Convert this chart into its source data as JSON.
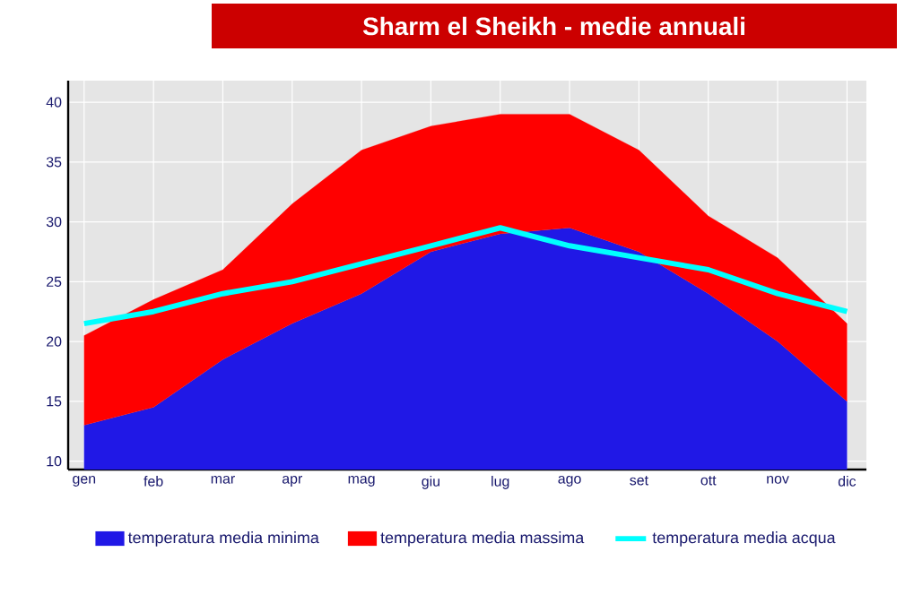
{
  "chart_data": {
    "type": "area",
    "title": "Sharm el Sheikh - medie annuali",
    "categories": [
      "gen",
      "feb",
      "mar",
      "apr",
      "mag",
      "giu",
      "lug",
      "ago",
      "set",
      "ott",
      "nov",
      "dic"
    ],
    "series": [
      {
        "name": "temperatura media minima",
        "color": "#2018e6",
        "values": [
          13,
          14.5,
          18.5,
          21.5,
          24,
          27.5,
          29,
          29.5,
          27.5,
          24,
          20,
          15
        ]
      },
      {
        "name": "temperatura media massima",
        "color": "#ff0000",
        "values": [
          20.5,
          23.5,
          26,
          31.5,
          36,
          38,
          39,
          39,
          36,
          30.5,
          27,
          21.5
        ]
      },
      {
        "name": "temperatura media acqua",
        "type": "line",
        "color": "#00ffff",
        "values": [
          21.5,
          22.5,
          24,
          25,
          26.5,
          28,
          29.5,
          28,
          27,
          26,
          24,
          22.5
        ]
      }
    ],
    "ylim": [
      9.3,
      41.8
    ],
    "yticks": [
      10,
      15,
      20,
      25,
      30,
      35,
      40
    ],
    "grid": true,
    "legend": "bottom"
  }
}
